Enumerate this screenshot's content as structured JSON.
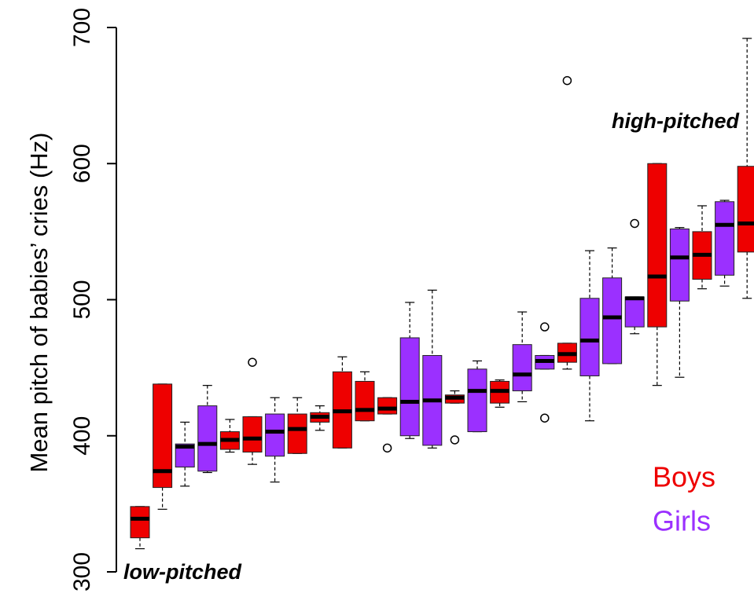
{
  "chart_data": {
    "type": "boxplot",
    "ylabel": "Mean pitch of babies’ cries (Hz)",
    "annotations": [
      "high-pitched",
      "low-pitched"
    ],
    "ylim": [
      300,
      700
    ],
    "yticks": [
      300,
      400,
      500,
      600,
      700
    ],
    "series": [
      {
        "name": "Boys",
        "color": "#ee0000"
      },
      {
        "name": "Girls",
        "color": "#9b30ff"
      }
    ],
    "boxes": [
      {
        "series": 0,
        "min": 317,
        "q1": 325,
        "median": 339,
        "q3": 348,
        "max": 348,
        "outliers": []
      },
      {
        "series": 0,
        "min": 346,
        "q1": 362,
        "median": 374,
        "q3": 438,
        "max": 438,
        "outliers": []
      },
      {
        "series": 1,
        "min": 363,
        "q1": 377,
        "median": 392,
        "q3": 394,
        "max": 410,
        "outliers": []
      },
      {
        "series": 1,
        "min": 373,
        "q1": 374,
        "median": 394,
        "q3": 422,
        "max": 437,
        "outliers": []
      },
      {
        "series": 0,
        "min": 388,
        "q1": 390,
        "median": 397,
        "q3": 403,
        "max": 412,
        "outliers": []
      },
      {
        "series": 0,
        "min": 379,
        "q1": 388,
        "median": 398,
        "q3": 414,
        "max": 414,
        "outliers": [
          454
        ]
      },
      {
        "series": 1,
        "min": 366,
        "q1": 385,
        "median": 403,
        "q3": 416,
        "max": 428,
        "outliers": []
      },
      {
        "series": 0,
        "min": 387,
        "q1": 387,
        "median": 405,
        "q3": 416,
        "max": 428,
        "outliers": []
      },
      {
        "series": 0,
        "min": 404,
        "q1": 410,
        "median": 414,
        "q3": 417,
        "max": 422,
        "outliers": []
      },
      {
        "series": 0,
        "min": 391,
        "q1": 391,
        "median": 418,
        "q3": 447,
        "max": 458,
        "outliers": []
      },
      {
        "series": 0,
        "min": 411,
        "q1": 411,
        "median": 419,
        "q3": 440,
        "max": 447,
        "outliers": []
      },
      {
        "series": 0,
        "min": 416,
        "q1": 416,
        "median": 420,
        "q3": 428,
        "max": 428,
        "outliers": [
          391
        ]
      },
      {
        "series": 1,
        "min": 398,
        "q1": 400,
        "median": 425,
        "q3": 472,
        "max": 498,
        "outliers": []
      },
      {
        "series": 1,
        "min": 391,
        "q1": 393,
        "median": 426,
        "q3": 459,
        "max": 507,
        "outliers": []
      },
      {
        "series": 0,
        "min": 424,
        "q1": 424,
        "median": 428,
        "q3": 430,
        "max": 433,
        "outliers": [
          397
        ]
      },
      {
        "series": 1,
        "min": 403,
        "q1": 403,
        "median": 433,
        "q3": 449,
        "max": 455,
        "outliers": []
      },
      {
        "series": 0,
        "min": 421,
        "q1": 424,
        "median": 433,
        "q3": 440,
        "max": 441,
        "outliers": []
      },
      {
        "series": 1,
        "min": 425,
        "q1": 433,
        "median": 445,
        "q3": 467,
        "max": 491,
        "outliers": []
      },
      {
        "series": 1,
        "min": 449,
        "q1": 449,
        "median": 455,
        "q3": 459,
        "max": 459,
        "outliers": [
          480,
          413
        ]
      },
      {
        "series": 0,
        "min": 449,
        "q1": 454,
        "median": 460,
        "q3": 468,
        "max": 468,
        "outliers": [
          661
        ]
      },
      {
        "series": 1,
        "min": 411,
        "q1": 444,
        "median": 470,
        "q3": 501,
        "max": 536,
        "outliers": []
      },
      {
        "series": 1,
        "min": 453,
        "q1": 453,
        "median": 487,
        "q3": 516,
        "max": 538,
        "outliers": []
      },
      {
        "series": 1,
        "min": 475,
        "q1": 480,
        "median": 501,
        "q3": 502,
        "max": 502,
        "outliers": [
          556
        ]
      },
      {
        "series": 0,
        "min": 437,
        "q1": 480,
        "median": 517,
        "q3": 600,
        "max": 600,
        "outliers": []
      },
      {
        "series": 1,
        "min": 443,
        "q1": 499,
        "median": 531,
        "q3": 552,
        "max": 553,
        "outliers": []
      },
      {
        "series": 0,
        "min": 508,
        "q1": 515,
        "median": 533,
        "q3": 550,
        "max": 569,
        "outliers": []
      },
      {
        "series": 1,
        "min": 510,
        "q1": 518,
        "median": 555,
        "q3": 572,
        "max": 573,
        "outliers": []
      },
      {
        "series": 0,
        "min": 501,
        "q1": 535,
        "median": 556,
        "q3": 598,
        "max": 692,
        "outliers": []
      }
    ]
  }
}
